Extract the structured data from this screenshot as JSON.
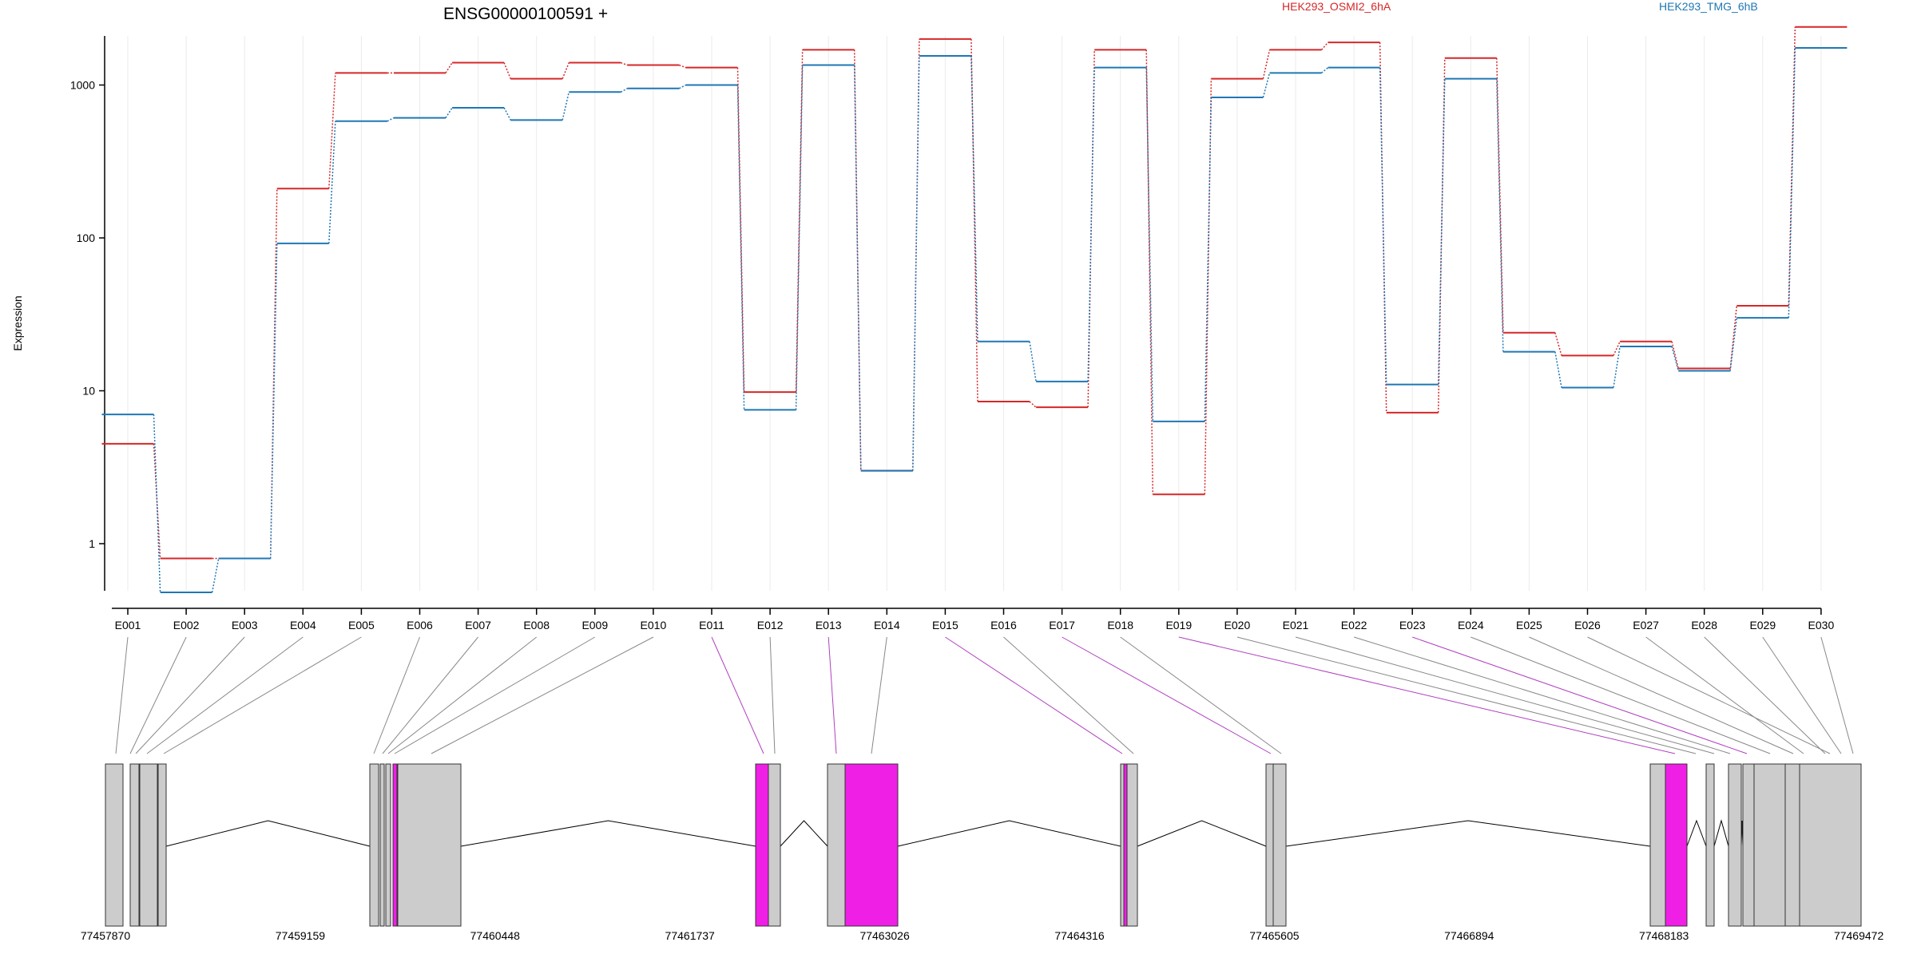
{
  "chart_data": {
    "type": "line",
    "title": "ENSG00000100591 +",
    "ylabel": "Expression",
    "yscale": "log",
    "ylim": [
      0.5,
      3000
    ],
    "yticks": [
      1,
      10,
      100,
      1000
    ],
    "ytick_labels": [
      "1",
      "10",
      "100",
      "1000"
    ],
    "categories": [
      "E001",
      "E002",
      "E003",
      "E004",
      "E005",
      "E006",
      "E007",
      "E008",
      "E009",
      "E010",
      "E011",
      "E012",
      "E013",
      "E014",
      "E015",
      "E016",
      "E017",
      "E018",
      "E019",
      "E020",
      "E021",
      "E022",
      "E023",
      "E024",
      "E025",
      "E026",
      "E027",
      "E028",
      "E029",
      "E030"
    ],
    "series": [
      {
        "name": "HEK293_OSMI2_6hA",
        "color": "#d62728",
        "values": [
          4.5,
          0.8,
          0.8,
          210,
          1200,
          1200,
          1400,
          1100,
          1400,
          1350,
          1300,
          9.8,
          1700,
          3,
          2000,
          8.5,
          7.8,
          1700,
          2.1,
          1100,
          1700,
          1900,
          7.2,
          1500,
          24,
          17,
          21,
          14,
          36,
          2400
        ]
      },
      {
        "name": "HEK293_TMG_6hB",
        "color": "#1f77b4",
        "values": [
          7,
          0.48,
          0.8,
          92,
          580,
          610,
          710,
          590,
          900,
          950,
          1000,
          7.5,
          1350,
          3,
          1550,
          21,
          11.5,
          1300,
          6.3,
          830,
          1200,
          1300,
          11,
          1100,
          18,
          10.5,
          19.5,
          13.5,
          30,
          1750
        ]
      }
    ],
    "grid": "vertical-faint",
    "gene_model": {
      "coord_labels": [
        "77457870",
        "77459159",
        "77460448",
        "77461737",
        "77463026",
        "77464316",
        "77465605",
        "77466894",
        "77468183",
        "77469472"
      ],
      "highlighted_exons": [
        "E011",
        "E013",
        "E015",
        "E017",
        "E019",
        "E023"
      ],
      "highlight_color": "#f01fe6",
      "exon_color": "#cccccc"
    }
  }
}
